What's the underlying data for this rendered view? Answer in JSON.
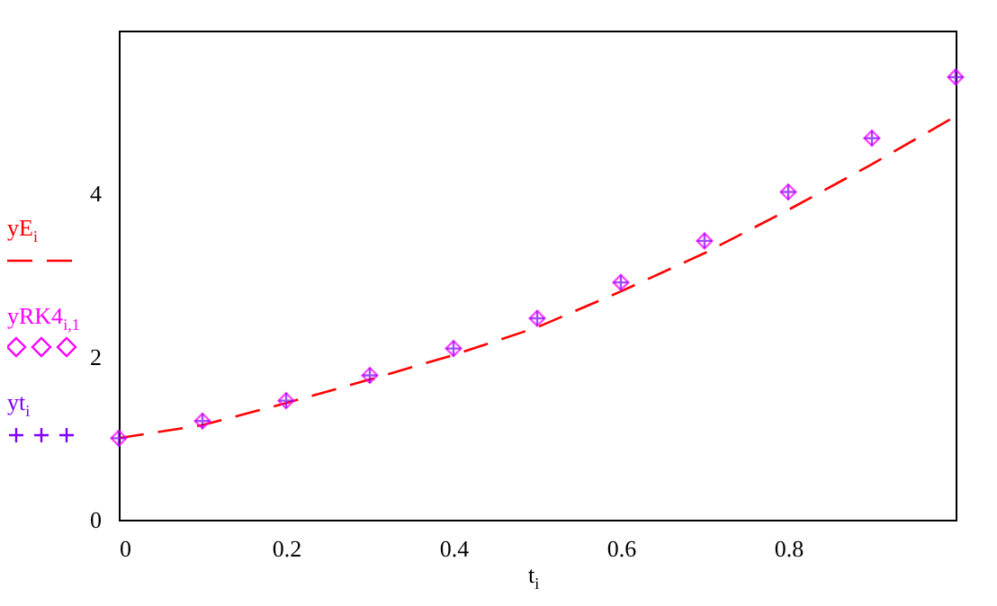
{
  "chart_data": {
    "type": "line",
    "xlabel": "t$_{i}$",
    "x": [
      0,
      0.1,
      0.2,
      0.3,
      0.4,
      0.5,
      0.6,
      0.7,
      0.8,
      0.9,
      1.0
    ],
    "series": [
      {
        "name": "yE$_{i}$",
        "type": "line",
        "color": "#ff0000",
        "line_style": "dashed",
        "marker": "none",
        "values": [
          1.0,
          1.16,
          1.43,
          1.72,
          2.02,
          2.36,
          2.8,
          3.27,
          3.8,
          4.36,
          4.95
        ]
      },
      {
        "name": "yRK4$_{i,1}$",
        "type": "scatter",
        "color": "#ff00ff",
        "marker": "diamond",
        "values": [
          1.0,
          1.21,
          1.46,
          1.77,
          2.1,
          2.47,
          2.91,
          3.42,
          4.02,
          4.68,
          5.43
        ]
      },
      {
        "name": "yt$_{i}$",
        "type": "scatter",
        "color": "#7f00ff",
        "marker": "cross",
        "values": [
          1.0,
          1.21,
          1.46,
          1.77,
          2.1,
          2.47,
          2.91,
          3.42,
          4.02,
          4.68,
          5.43
        ]
      }
    ],
    "xlim": [
      0,
      1
    ],
    "ylim": [
      0,
      6
    ],
    "xticks": [
      0,
      0.2,
      0.4,
      0.6,
      0.8
    ],
    "yticks": [
      0,
      2,
      4
    ],
    "grid": false,
    "legend": "left"
  }
}
